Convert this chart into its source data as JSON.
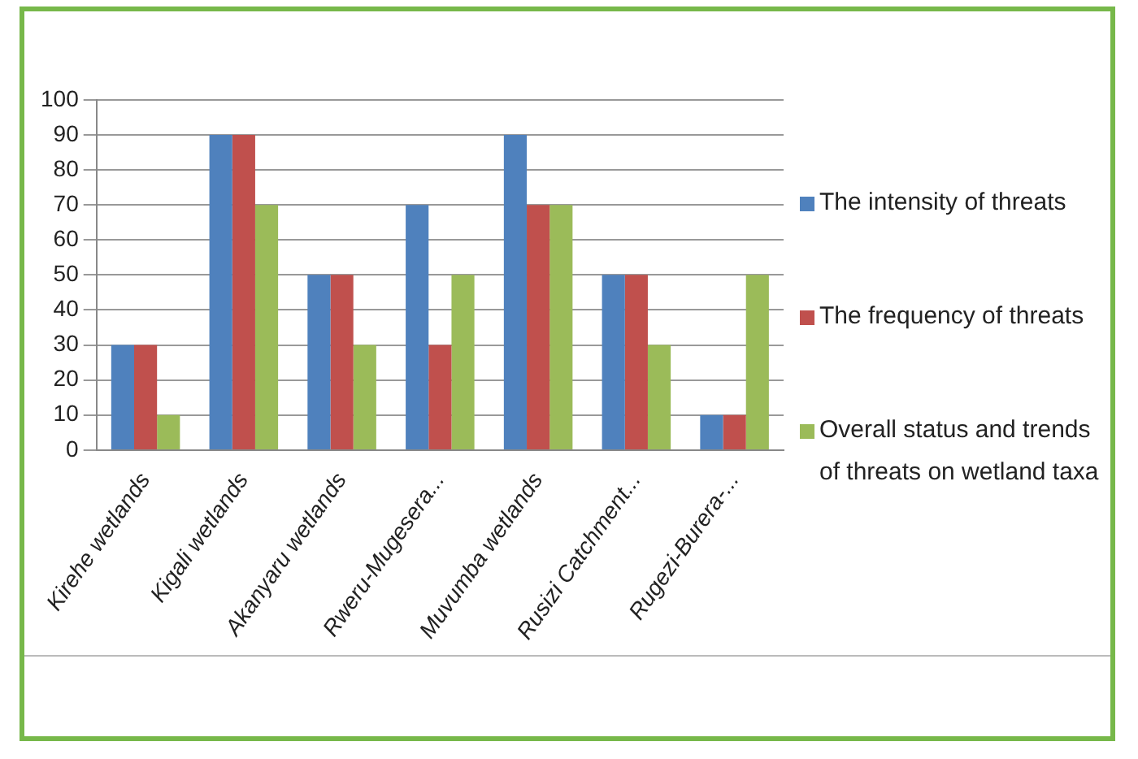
{
  "chart_data": {
    "type": "bar",
    "categories": [
      "Kirehe wetlands",
      "Kigali wetlands",
      "Akanyaru wetlands",
      "Rweru-Mugesera...",
      "Muvumba wetlands",
      "Rusizi Catchment...",
      "Rugezi-Burera-..."
    ],
    "series": [
      {
        "name": "The intensity of threats",
        "color": "#4f81bd",
        "values": [
          30,
          90,
          50,
          70,
          90,
          50,
          10
        ]
      },
      {
        "name": "The frequency of threats",
        "color": "#c0504d",
        "values": [
          30,
          90,
          50,
          30,
          70,
          50,
          10
        ]
      },
      {
        "name": "Overall status and trends of threats on wetland taxa",
        "color": "#9bbb59",
        "values": [
          10,
          70,
          30,
          50,
          70,
          30,
          50
        ]
      }
    ],
    "ylim": [
      0,
      100
    ],
    "yticks": [
      0,
      10,
      20,
      30,
      40,
      50,
      60,
      70,
      80,
      90,
      100
    ],
    "grid": "y",
    "legend": "right"
  }
}
